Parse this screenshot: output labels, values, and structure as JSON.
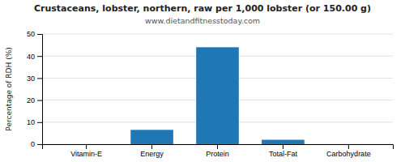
{
  "chart_data": {
    "type": "bar",
    "title": "Crustaceans, lobster, northern, raw per 1,000 lobster (or 150.00 g)",
    "subtitle": "www.dietandfitnesstoday.com",
    "categories": [
      "Vitamin-E",
      "Energy",
      "Protein",
      "Total-Fat",
      "Carbohydrate"
    ],
    "values": [
      0,
      6.5,
      44,
      2,
      0
    ],
    "ylabel": "Percentage of RDH (%)",
    "ylim": [
      0,
      50
    ],
    "yticks": [
      0,
      10,
      20,
      30,
      40,
      50
    ],
    "grid": true
  }
}
